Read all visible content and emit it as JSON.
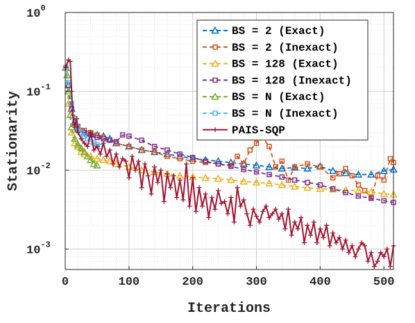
{
  "chart_data": {
    "type": "line",
    "xlabel": "Iterations",
    "ylabel": "Stationarity",
    "xlim": [
      0,
      515
    ],
    "ylim": [
      0.00055,
      1
    ],
    "yscale": "log",
    "grid": true,
    "minor_grid": true,
    "legend_position": "top-right",
    "x_ticks": [
      0,
      100,
      200,
      300,
      400,
      500
    ],
    "x_tick_labels": [
      "0",
      "100",
      "200",
      "300",
      "400",
      "500"
    ],
    "y_ticks": [
      0.001,
      0.01,
      0.1,
      1
    ],
    "y_tick_bases": [
      "10",
      "10",
      "10",
      "10"
    ],
    "y_tick_exps": [
      "-3",
      "-2",
      "-1",
      "0"
    ],
    "series": [
      {
        "name": "BS = 2 (Exact)",
        "color": "#0072BD",
        "dash": "6,4",
        "marker": "triangle",
        "x": [
          1,
          5,
          10,
          15,
          20,
          30,
          40,
          50,
          60,
          70,
          80,
          100,
          120,
          140,
          160,
          180,
          200,
          220,
          240,
          260,
          280,
          300,
          320,
          340,
          360,
          380,
          400,
          420,
          440,
          460,
          480,
          500,
          515
        ],
        "y": [
          0.2,
          0.12,
          0.06,
          0.04,
          0.033,
          0.03,
          0.029,
          0.028,
          0.027,
          0.025,
          0.022,
          0.02,
          0.018,
          0.017,
          0.016,
          0.015,
          0.014,
          0.0135,
          0.013,
          0.0125,
          0.012,
          0.0115,
          0.011,
          0.0105,
          0.0108,
          0.0105,
          0.0112,
          0.0098,
          0.0092,
          0.0088,
          0.0088,
          0.0098,
          0.0102
        ]
      },
      {
        "name": "BS = 2 (Inexact)",
        "color": "#D95319",
        "dash": "6,4",
        "marker": "square",
        "x": [
          1,
          5,
          10,
          15,
          20,
          30,
          40,
          50,
          60,
          70,
          80,
          100,
          120,
          140,
          160,
          180,
          200,
          220,
          240,
          260,
          270,
          280,
          290,
          300,
          310,
          320,
          330,
          340,
          350,
          360,
          380,
          400,
          420,
          430,
          440,
          450,
          460,
          470,
          480,
          490,
          500,
          510,
          515
        ],
        "y": [
          0.2,
          0.12,
          0.07,
          0.045,
          0.036,
          0.032,
          0.03,
          0.028,
          0.026,
          0.024,
          0.022,
          0.02,
          0.018,
          0.017,
          0.015,
          0.014,
          0.013,
          0.0125,
          0.012,
          0.0115,
          0.015,
          0.012,
          0.018,
          0.022,
          0.026,
          0.02,
          0.011,
          0.013,
          0.0075,
          0.011,
          0.012,
          0.011,
          0.008,
          0.009,
          0.0105,
          0.0085,
          0.0065,
          0.0055,
          0.0045,
          0.0085,
          0.0075,
          0.014,
          0.0125
        ]
      },
      {
        "name": "BS = 128 (Exact)",
        "color": "#EDB120",
        "dash": "6,4",
        "marker": "triangle",
        "x": [
          1,
          5,
          10,
          15,
          20,
          25,
          30,
          40,
          50,
          60,
          70,
          80,
          100,
          120,
          140,
          160,
          180,
          200,
          220,
          240,
          260,
          280,
          300,
          320,
          340,
          360,
          380,
          400,
          420,
          440,
          460,
          480,
          500,
          515
        ],
        "y": [
          0.2,
          0.07,
          0.03,
          0.022,
          0.02,
          0.017,
          0.016,
          0.015,
          0.014,
          0.0135,
          0.013,
          0.012,
          0.011,
          0.01,
          0.0095,
          0.009,
          0.0085,
          0.0082,
          0.008,
          0.0078,
          0.0075,
          0.0072,
          0.007,
          0.0068,
          0.0065,
          0.0062,
          0.006,
          0.0058,
          0.0057,
          0.0056,
          0.0055,
          0.0053,
          0.005,
          0.0049
        ]
      },
      {
        "name": "BS = 128 (Inexact)",
        "color": "#7E2F8E",
        "dash": "6,4",
        "marker": "square",
        "x": [
          1,
          5,
          10,
          15,
          20,
          30,
          40,
          50,
          60,
          70,
          80,
          90,
          100,
          120,
          140,
          160,
          180,
          200,
          220,
          240,
          260,
          280,
          300,
          320,
          340,
          360,
          380,
          400,
          420,
          440,
          460,
          480,
          500,
          515
        ],
        "y": [
          0.2,
          0.12,
          0.06,
          0.04,
          0.034,
          0.03,
          0.028,
          0.026,
          0.025,
          0.024,
          0.023,
          0.028,
          0.027,
          0.024,
          0.02,
          0.018,
          0.016,
          0.0145,
          0.013,
          0.012,
          0.0112,
          0.0102,
          0.0095,
          0.0088,
          0.0082,
          0.0075,
          0.007,
          0.0065,
          0.0058,
          0.0052,
          0.0047,
          0.0044,
          0.0041,
          0.0039
        ]
      },
      {
        "name": "BS = N (Exact)",
        "color": "#77AC30",
        "dash": "6,4",
        "marker": "triangle",
        "x": [
          1,
          3,
          5,
          8,
          10,
          15,
          20,
          25,
          30,
          35,
          40,
          45,
          50
        ],
        "y": [
          0.2,
          0.16,
          0.1,
          0.05,
          0.035,
          0.025,
          0.021,
          0.019,
          0.017,
          0.015,
          0.0135,
          0.012,
          0.0115
        ]
      },
      {
        "name": "BS = N (Inexact)",
        "color": "#4DBEEE",
        "dash": "6,4",
        "marker": "square",
        "x": [
          1,
          5,
          10,
          15,
          20,
          25,
          30,
          35,
          40,
          45,
          50,
          55
        ],
        "y": [
          0.2,
          0.13,
          0.07,
          0.045,
          0.035,
          0.03,
          0.027,
          0.025,
          0.023,
          0.022,
          0.021,
          0.02
        ]
      },
      {
        "name": "PAIS-SQP",
        "color": "#A2142F",
        "dash": "",
        "marker": "plus",
        "x": [
          1,
          5,
          8,
          10,
          12,
          15,
          18,
          20,
          25,
          30,
          35,
          40,
          45,
          50,
          55,
          60,
          65,
          70,
          75,
          80,
          85,
          90,
          95,
          100,
          105,
          110,
          115,
          120,
          125,
          130,
          135,
          140,
          145,
          150,
          155,
          160,
          165,
          170,
          175,
          180,
          185,
          190,
          195,
          200,
          205,
          210,
          215,
          220,
          225,
          230,
          235,
          240,
          245,
          250,
          255,
          260,
          265,
          270,
          275,
          280,
          285,
          290,
          295,
          300,
          305,
          310,
          315,
          320,
          325,
          330,
          335,
          340,
          345,
          350,
          355,
          360,
          365,
          370,
          375,
          380,
          385,
          390,
          395,
          400,
          405,
          410,
          415,
          420,
          425,
          430,
          435,
          440,
          445,
          450,
          455,
          460,
          465,
          470,
          475,
          480,
          485,
          490,
          495,
          500,
          505,
          510,
          515
        ],
        "y": [
          0.2,
          0.25,
          0.24,
          0.1,
          0.05,
          0.035,
          0.045,
          0.03,
          0.025,
          0.022,
          0.02,
          0.03,
          0.018,
          0.02,
          0.016,
          0.022,
          0.015,
          0.018,
          0.012,
          0.016,
          0.011,
          0.014,
          0.013,
          0.008,
          0.015,
          0.01,
          0.013,
          0.006,
          0.012,
          0.0085,
          0.005,
          0.011,
          0.007,
          0.01,
          0.004,
          0.009,
          0.006,
          0.0085,
          0.0045,
          0.0075,
          0.0042,
          0.012,
          0.0035,
          0.008,
          0.003,
          0.006,
          0.0035,
          0.005,
          0.0025,
          0.0045,
          0.0032,
          0.0055,
          0.0038,
          0.004,
          0.0028,
          0.0045,
          0.0022,
          0.006,
          0.0035,
          0.0042,
          0.0028,
          0.002,
          0.0032,
          0.0026,
          0.0022,
          0.003,
          0.0035,
          0.0025,
          0.0028,
          0.0032,
          0.0024,
          0.0028,
          0.0018,
          0.0032,
          0.0015,
          0.0022,
          0.0018,
          0.0025,
          0.0012,
          0.002,
          0.0015,
          0.0022,
          0.0012,
          0.0018,
          0.0014,
          0.002,
          0.0011,
          0.0016,
          0.0012,
          0.0014,
          0.001,
          0.0013,
          0.0009,
          0.0011,
          0.0008,
          0.001,
          0.0012,
          0.0011,
          0.0007,
          0.0009,
          0.0006,
          0.0007,
          0.0009,
          0.0008,
          0.001,
          0.0006,
          0.0011
        ]
      }
    ]
  }
}
